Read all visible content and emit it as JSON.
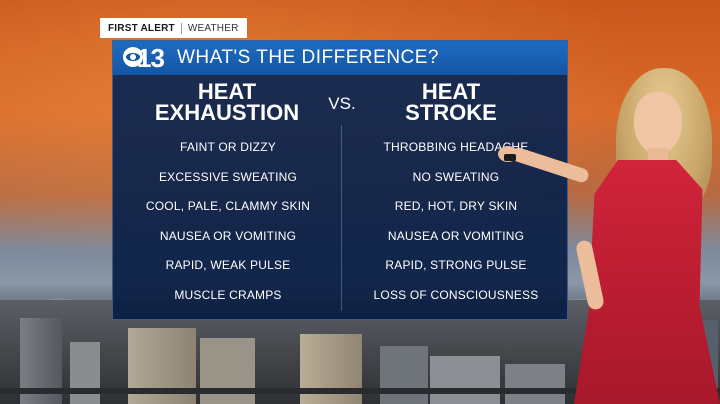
{
  "badge": {
    "brand": "FIRST ALERT",
    "section": "WEATHER"
  },
  "board": {
    "logo_number": "13",
    "title": "WHAT'S THE DIFFERENCE?",
    "vs": "VS.",
    "left": {
      "heading_line1": "HEAT",
      "heading_line2": "EXHAUSTION",
      "items": [
        "FAINT OR DIZZY",
        "EXCESSIVE SWEATING",
        "COOL, PALE, CLAMMY SKIN",
        "NAUSEA OR VOMITING",
        "RAPID, WEAK PULSE",
        "MUSCLE CRAMPS"
      ]
    },
    "right": {
      "heading_line1": "HEAT",
      "heading_line2": "STROKE",
      "items": [
        "THROBBING HEADACHE",
        "NO SWEATING",
        "RED, HOT, DRY SKIN",
        "NAUSEA OR VOMITING",
        "RAPID, STRONG PULSE",
        "LOSS OF CONSCIOUSNESS"
      ]
    }
  },
  "colors": {
    "header_blue": "#1356a3",
    "board_navy": "#0f2854",
    "dress_red": "#c8203a"
  },
  "icons": {
    "logo": "cbs-eye-icon"
  }
}
